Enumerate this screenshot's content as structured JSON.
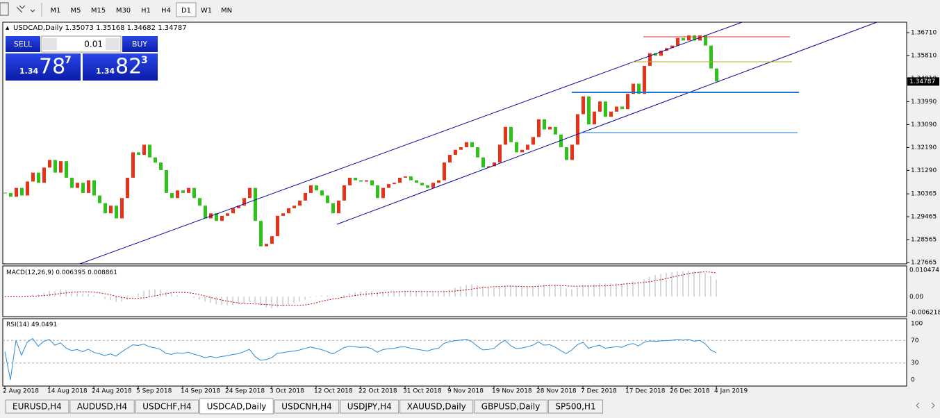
{
  "toolbar": {
    "timeframes": [
      "M1",
      "M5",
      "M15",
      "M30",
      "H1",
      "H4",
      "D1",
      "W1",
      "MN"
    ],
    "active_index": 6
  },
  "chart": {
    "header": {
      "symbol": "USDCAD,Daily",
      "ohlc": [
        1.35073,
        1.35168,
        1.34682,
        1.34787
      ]
    },
    "trade_panel": {
      "sell": "SELL",
      "buy": "BUY",
      "lot": "0.01",
      "bid": [
        "1.34",
        "78",
        "7"
      ],
      "ask": [
        "1.34",
        "82",
        "3"
      ]
    },
    "ylim": [
      1.2761,
      1.3712
    ],
    "price_ticks": [
      {
        "value": 1.3671,
        "label": "1.36710"
      },
      {
        "value": 1.3581,
        "label": "1.35810"
      },
      {
        "value": 1.3491,
        "label": "1.34910"
      },
      {
        "value": 1.3399,
        "label": "1.33990"
      },
      {
        "value": 1.3309,
        "label": "1.33090"
      },
      {
        "value": 1.3219,
        "label": "1.32190"
      },
      {
        "value": 1.3129,
        "label": "1.31290"
      },
      1.30365,
      1.29465,
      1.28565,
      1.27665
    ],
    "current_price": 1.34787,
    "candles": {
      "closes": [
        1.304,
        1.3025,
        1.306,
        1.303,
        1.3085,
        1.312,
        1.308,
        1.314,
        1.317,
        1.312,
        1.3165,
        1.31,
        1.306,
        1.308,
        1.304,
        1.309,
        1.303,
        1.3,
        1.296,
        1.299,
        1.294,
        1.302,
        1.31,
        1.32,
        1.319,
        1.323,
        1.318,
        1.316,
        1.313,
        1.304,
        1.302,
        1.305,
        1.304,
        1.306,
        1.302,
        1.299,
        1.294,
        1.296,
        1.293,
        1.295,
        1.296,
        1.298,
        1.299,
        1.302,
        1.306,
        1.293,
        1.283,
        1.284,
        1.287,
        1.295,
        1.296,
        1.298,
        1.299,
        1.301,
        1.304,
        1.307,
        1.305,
        1.303,
        1.3,
        1.296,
        1.301,
        1.307,
        1.31,
        1.309,
        1.3085,
        1.309,
        1.307,
        1.302,
        1.306,
        1.3075,
        1.308,
        1.31,
        1.3105,
        1.309,
        1.308,
        1.307,
        1.306,
        1.308,
        1.309,
        1.316,
        1.319,
        1.321,
        1.322,
        1.324,
        1.322,
        1.318,
        1.314,
        1.3145,
        1.316,
        1.323,
        1.33,
        1.324,
        1.32,
        1.321,
        1.323,
        1.326,
        1.333,
        1.329,
        1.33,
        1.327,
        1.322,
        1.317,
        1.323,
        1.335,
        1.342,
        1.331,
        1.336,
        1.34,
        1.334,
        1.336,
        1.338,
        1.337,
        1.343,
        1.347,
        1.343,
        1.354,
        1.359,
        1.358,
        1.36,
        1.361,
        1.362,
        1.365,
        1.364,
        1.366,
        1.364,
        1.366,
        1.362,
        1.353,
        1.34787
      ]
    },
    "dates": [
      "2 Aug 2018",
      "14 Aug 2018",
      "24 Aug 2018",
      "5 Sep 2018",
      "14 Sep 2018",
      "24 Sep 2018",
      "3 Oct 2018",
      "12 Oct 2018",
      "22 Oct 2018",
      "31 Oct 2018",
      "9 Nov 2018",
      "19 Nov 2018",
      "28 Nov 2018",
      "7 Dec 2018",
      "17 Dec 2018",
      "26 Dec 2018",
      "4 Jan 2019"
    ]
  },
  "macd": {
    "label": "MACD(12,26,9)",
    "values": [
      0.006395,
      0.008861
    ],
    "ticks": [
      0.010474,
      {
        "value": 0,
        "label": "0.00"
      },
      -0.006218
    ]
  },
  "rsi": {
    "label": "RSI(14)",
    "value": 49.0491,
    "ticks": [
      100,
      70,
      30,
      0
    ]
  },
  "tabs": {
    "items": [
      "EURUSD,H4",
      "AUDUSD,H4",
      "USDCHF,H4",
      "USDCAD,Daily",
      "USDCNH,H4",
      "USDJPY,H4",
      "XAUUSD,Daily",
      "GBPUSD,Daily",
      "SP500,H1"
    ],
    "active_index": 3
  }
}
